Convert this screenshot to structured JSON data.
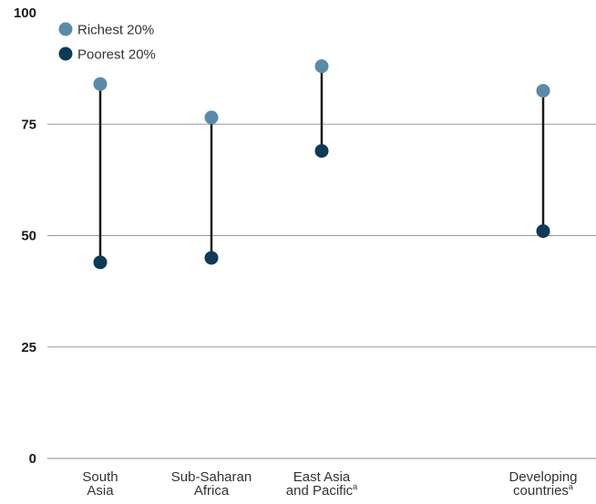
{
  "chart_data": {
    "type": "dot-range",
    "categories": [
      {
        "lines": [
          "South",
          "Asia"
        ],
        "sup": ""
      },
      {
        "lines": [
          "Sub-Saharan",
          "Africa"
        ],
        "sup": ""
      },
      {
        "lines": [
          "East Asia",
          "and Pacific"
        ],
        "sup": "a"
      },
      {
        "lines": [
          "Developing",
          "countries"
        ],
        "sup": "a"
      }
    ],
    "series": [
      {
        "name": "Richest 20%",
        "color": "#5b8aa8",
        "values": [
          84,
          76.5,
          88,
          82.5
        ]
      },
      {
        "name": "Poorest 20%",
        "color": "#0f3a57",
        "values": [
          44,
          45,
          69,
          51
        ]
      }
    ],
    "ylim": [
      0,
      100
    ],
    "yticks": [
      0,
      25,
      50,
      75,
      100
    ],
    "grid": true,
    "legend_position": "top-left",
    "connector_color": "#1a1a1a"
  }
}
